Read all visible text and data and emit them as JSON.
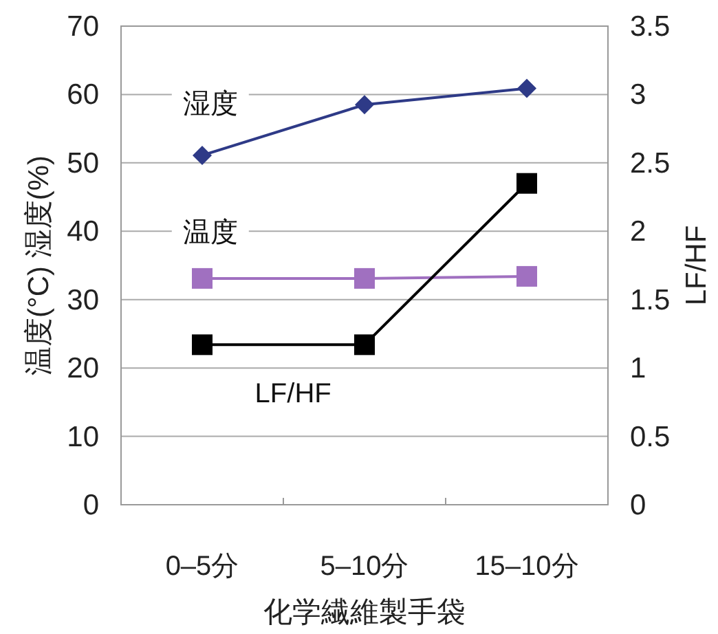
{
  "chart_data": {
    "type": "line",
    "categories": [
      "0–5分",
      "5–10分",
      "15–10分"
    ],
    "xlabel": "化学繊維製手袋",
    "ylabel": "温度(°C)  湿度(%)",
    "y2label": "LF/HF",
    "ylim": [
      0,
      70
    ],
    "yticks": [
      0,
      10,
      20,
      30,
      40,
      50,
      60,
      70
    ],
    "y2lim": [
      0,
      3.5
    ],
    "y2ticks": [
      0,
      0.5,
      1,
      1.5,
      2,
      2.5,
      3,
      3.5
    ],
    "grid": "y",
    "legend": false,
    "line_style": "solid",
    "series": [
      {
        "name": "湿度",
        "color": "#2e3a87",
        "marker": "diamond",
        "values": [
          51.1,
          58.5,
          60.9
        ]
      },
      {
        "name": "温度",
        "color": "#a070c0",
        "marker": "square",
        "values": [
          33.1,
          33.1,
          33.4
        ]
      },
      {
        "name": "LF/HF",
        "color": "#000000",
        "marker": "square",
        "axis": "y2",
        "values": [
          1.17,
          1.17,
          2.35
        ]
      }
    ]
  }
}
